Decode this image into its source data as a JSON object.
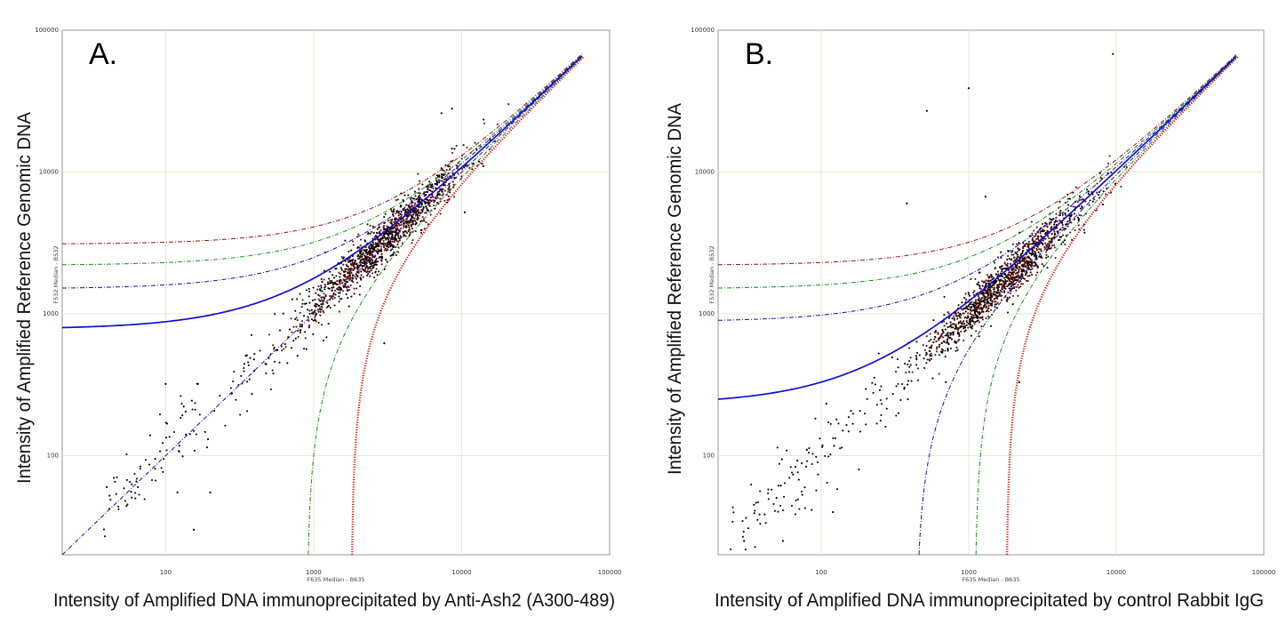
{
  "chart_data": [
    {
      "type": "scatter",
      "panel_label": "A.",
      "xlabel": "Intensity of Amplified DNA immunoprecipitated by Anti-Ash2 (A300-489)",
      "ylabel": "Intensity of Amplified Reference Genomic DNA",
      "inner_xlabel": "F635 Median - B635",
      "inner_ylabel": "F532 Median - B532",
      "x_scale": "log",
      "y_scale": "log",
      "xlim": [
        20,
        100000
      ],
      "ylim": [
        20,
        100000
      ],
      "x_ticks": [
        "100",
        "1000",
        "10000",
        "100000"
      ],
      "y_ticks": [
        "100",
        "1000",
        "10000",
        "100000"
      ],
      "grid": true,
      "cloud": {
        "center_x": 3000,
        "center_y": 3000,
        "ratio_y_over_x": 1.1,
        "n_points": 1300
      },
      "fit_curve": {
        "color": "#1010cc",
        "offset_y": 780
      },
      "series": [
        {
          "color": "#8b1a1a",
          "style": "dash-dot",
          "offset_x": 0,
          "offset_y": 3100,
          "values": [
            [
              20,
              3100
            ],
            [
              1000,
              4100
            ],
            [
              10000,
              13100
            ],
            [
              65000,
              68100
            ]
          ]
        },
        {
          "color": "#1c8c1c",
          "style": "dash-dot",
          "offset_x": 0,
          "offset_y": 2200,
          "values": [
            [
              20,
              2200
            ],
            [
              1000,
              3200
            ],
            [
              10000,
              12200
            ],
            [
              65000,
              67200
            ]
          ]
        },
        {
          "color": "#1414a0",
          "style": "dash-dot",
          "offset_x": 0,
          "offset_y": 1500,
          "values": [
            [
              20,
              1500
            ],
            [
              1000,
              2500
            ],
            [
              10000,
              11500
            ],
            [
              65000,
              66500
            ]
          ]
        },
        {
          "color": "#1414a0",
          "style": "dash-dot",
          "offset_x": 0,
          "offset_y": 0,
          "values": [
            [
              20,
              20
            ],
            [
              1000,
              1000
            ],
            [
              10000,
              10000
            ],
            [
              65000,
              65000
            ]
          ]
        },
        {
          "color": "#1c8c1c",
          "style": "dash-dot",
          "offset_x": 900,
          "offset_y": 0,
          "values": [
            [
              920,
              20
            ],
            [
              1900,
              1000
            ],
            [
              10900,
              10000
            ],
            [
              65900,
              65000
            ]
          ]
        },
        {
          "color": "#e01010",
          "style": "dotted",
          "offset_x": 1800,
          "offset_y": 0,
          "values": [
            [
              1820,
              20
            ],
            [
              2800,
              1000
            ],
            [
              11800,
              10000
            ],
            [
              66800,
              65000
            ]
          ]
        }
      ],
      "outliers": [
        [
          7300,
          26000
        ],
        [
          8600,
          28000
        ],
        [
          12000,
          11500
        ],
        [
          14000,
          11000
        ],
        [
          10500,
          5200
        ],
        [
          3000,
          620
        ],
        [
          1600,
          2500
        ],
        [
          200,
          55
        ],
        [
          100,
          320
        ],
        [
          155,
          30
        ],
        [
          120,
          55
        ],
        [
          85,
          95
        ],
        [
          65,
          60
        ],
        [
          40,
          60
        ]
      ]
    },
    {
      "type": "scatter",
      "panel_label": "B.",
      "xlabel": "Intensity of Amplified DNA immunoprecipitated by control Rabbit IgG",
      "ylabel": "Intensity of Amplified Reference Genomic DNA",
      "inner_xlabel": "F635 Median - B635",
      "inner_ylabel": "F532 Median - B532",
      "x_scale": "log",
      "y_scale": "log",
      "xlim": [
        20,
        100000
      ],
      "ylim": [
        20,
        100000
      ],
      "x_ticks": [
        "100",
        "1000",
        "10000",
        "100000"
      ],
      "y_ticks": [
        "100",
        "1000",
        "10000",
        "100000"
      ],
      "grid": true,
      "cloud": {
        "center_x": 1800,
        "center_y": 1800,
        "ratio_y_over_x": 1.0,
        "n_points": 1300
      },
      "fit_curve": {
        "color": "#1010cc",
        "offset_y": 230
      },
      "series": [
        {
          "color": "#8b1a1a",
          "style": "dash-dot",
          "offset_x": 0,
          "offset_y": 2200,
          "values": [
            [
              20,
              2200
            ],
            [
              1000,
              3200
            ],
            [
              10000,
              12200
            ],
            [
              65000,
              67200
            ]
          ]
        },
        {
          "color": "#1c8c1c",
          "style": "dash-dot",
          "offset_x": 0,
          "offset_y": 1500,
          "values": [
            [
              20,
              1500
            ],
            [
              1000,
              2500
            ],
            [
              10000,
              11500
            ],
            [
              65000,
              66500
            ]
          ]
        },
        {
          "color": "#1414a0",
          "style": "dash-dot",
          "offset_x": 0,
          "offset_y": 880,
          "values": [
            [
              20,
              880
            ],
            [
              1000,
              1880
            ],
            [
              10000,
              10880
            ],
            [
              65000,
              65880
            ]
          ]
        },
        {
          "color": "#1414a0",
          "style": "dash-dot",
          "offset_x": 440,
          "offset_y": 0,
          "values": [
            [
              460,
              20
            ],
            [
              1440,
              1000
            ],
            [
              10440,
              10000
            ],
            [
              65440,
              65000
            ]
          ]
        },
        {
          "color": "#1c8c1c",
          "style": "dash-dot",
          "offset_x": 1100,
          "offset_y": 0,
          "values": [
            [
              1120,
              20
            ],
            [
              2100,
              1000
            ],
            [
              11100,
              10000
            ],
            [
              66100,
              65000
            ]
          ]
        },
        {
          "color": "#e01010",
          "style": "dotted",
          "offset_x": 1800,
          "offset_y": 0,
          "values": [
            [
              1820,
              20
            ],
            [
              2800,
              1000
            ],
            [
              11800,
              10000
            ],
            [
              66800,
              65000
            ]
          ]
        }
      ],
      "outliers": [
        [
          9500,
          68000
        ],
        [
          1000,
          39000
        ],
        [
          520,
          27000
        ],
        [
          380,
          6000
        ],
        [
          1300,
          6700
        ],
        [
          700,
          330
        ],
        [
          2200,
          330
        ],
        [
          30,
          25
        ],
        [
          35,
          45
        ],
        [
          55,
          25
        ],
        [
          80,
          110
        ],
        [
          120,
          40
        ],
        [
          140,
          150
        ],
        [
          180,
          80
        ]
      ]
    }
  ]
}
